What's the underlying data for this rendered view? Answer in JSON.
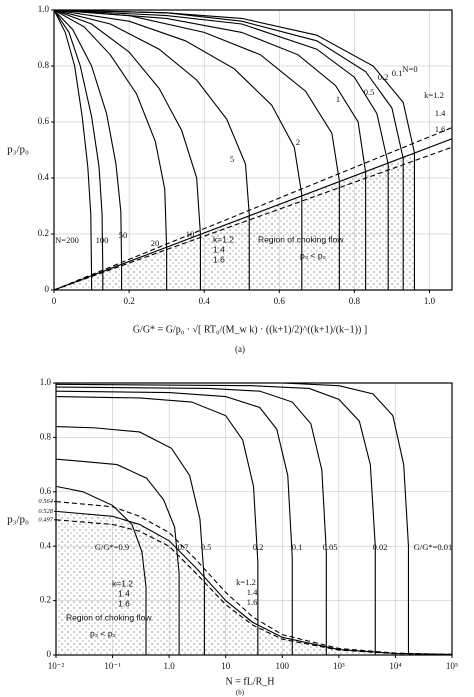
{
  "chart_data": [
    {
      "type": "line",
      "caption": "(a)",
      "ylabel": "p₃/p₀",
      "xlabel": "G/G* = G/p₀ · √[ RT₀/(M_w k) · ((k+1)/2)^((k+1)/(k−1)) ]",
      "xlim": [
        0,
        1.06
      ],
      "ylim": [
        0,
        1.0
      ],
      "xticks": [
        0,
        0.2,
        0.4,
        0.6,
        0.8,
        {
          "value": 1,
          "label": "1.0"
        }
      ],
      "yticks": [
        0,
        0.2,
        0.4,
        0.6,
        0.8,
        {
          "value": 1,
          "label": "1.0"
        }
      ],
      "grid": true,
      "annotations": [
        "k=1.2",
        "1.4",
        "1.6",
        "Region of choking flow",
        "p₃ < p₂"
      ],
      "series": [
        {
          "name": "N=0",
          "color": "#000",
          "x": [
            0,
            0.3,
            0.5,
            0.7,
            0.85,
            0.93,
            0.96,
            0.96
          ],
          "values": [
            1,
            0.99,
            0.97,
            0.91,
            0.8,
            0.67,
            0.49,
            0
          ]
        },
        {
          "name": "0.1",
          "color": "#000",
          "x": [
            0,
            0.3,
            0.5,
            0.7,
            0.83,
            0.9,
            0.93,
            0.93
          ],
          "values": [
            1,
            0.99,
            0.96,
            0.89,
            0.78,
            0.65,
            0.47,
            0
          ]
        },
        {
          "name": "0.2",
          "color": "#000",
          "x": [
            0,
            0.3,
            0.5,
            0.7,
            0.8,
            0.86,
            0.89,
            0.89
          ],
          "values": [
            1,
            0.98,
            0.95,
            0.86,
            0.76,
            0.63,
            0.45,
            0
          ]
        },
        {
          "name": "0.5",
          "color": "#000",
          "x": [
            0,
            0.3,
            0.5,
            0.65,
            0.75,
            0.81,
            0.83,
            0.83
          ],
          "values": [
            1,
            0.97,
            0.92,
            0.84,
            0.73,
            0.6,
            0.42,
            0
          ]
        },
        {
          "name": "1",
          "color": "#000",
          "x": [
            0,
            0.2,
            0.4,
            0.55,
            0.67,
            0.74,
            0.76,
            0.76
          ],
          "values": [
            1,
            0.98,
            0.92,
            0.84,
            0.71,
            0.56,
            0.39,
            0
          ]
        },
        {
          "name": "2",
          "color": "#000",
          "x": [
            0,
            0.2,
            0.35,
            0.48,
            0.58,
            0.64,
            0.66,
            0.66
          ],
          "values": [
            1,
            0.96,
            0.89,
            0.79,
            0.66,
            0.51,
            0.34,
            0
          ]
        },
        {
          "name": "5",
          "color": "#000",
          "x": [
            0,
            0.15,
            0.28,
            0.38,
            0.46,
            0.51,
            0.52,
            0.52
          ],
          "values": [
            1,
            0.95,
            0.86,
            0.75,
            0.61,
            0.45,
            0.27,
            0
          ]
        },
        {
          "name": "10",
          "color": "#000",
          "x": [
            0,
            0.1,
            0.2,
            0.28,
            0.34,
            0.38,
            0.39,
            0.39
          ],
          "values": [
            1,
            0.95,
            0.85,
            0.72,
            0.57,
            0.4,
            0.2,
            0
          ]
        },
        {
          "name": "20",
          "color": "#000",
          "x": [
            0,
            0.08,
            0.15,
            0.22,
            0.27,
            0.295,
            0.3,
            0.3
          ],
          "values": [
            1,
            0.94,
            0.84,
            0.7,
            0.53,
            0.36,
            0.15,
            0
          ]
        },
        {
          "name": "50",
          "color": "#000",
          "x": [
            0,
            0.05,
            0.1,
            0.14,
            0.165,
            0.178,
            0.18,
            0.18
          ],
          "values": [
            1,
            0.93,
            0.8,
            0.63,
            0.45,
            0.28,
            0.09,
            0
          ]
        },
        {
          "name": "100",
          "color": "#000",
          "x": [
            0,
            0.04,
            0.07,
            0.1,
            0.12,
            0.128,
            0.13,
            0.13
          ],
          "values": [
            1,
            0.92,
            0.8,
            0.62,
            0.44,
            0.27,
            0.07,
            0
          ]
        },
        {
          "name": "N=200",
          "color": "#000",
          "x": [
            0,
            0.03,
            0.055,
            0.075,
            0.09,
            0.098,
            0.1,
            0.1
          ],
          "values": [
            1,
            0.92,
            0.8,
            0.62,
            0.44,
            0.27,
            0.05,
            0
          ]
        },
        {
          "name": "k=1.2",
          "color": "#000",
          "dashed": true,
          "x": [
            0,
            1.06
          ],
          "values": [
            0,
            0.58
          ]
        },
        {
          "name": "1.4",
          "color": "#000",
          "dashed": false,
          "region": true,
          "x": [
            0,
            1.06
          ],
          "values": [
            0,
            0.54
          ]
        },
        {
          "name": "1.6",
          "color": "#000",
          "dashed": true,
          "x": [
            0,
            1.06
          ],
          "values": [
            0,
            0.51
          ]
        }
      ]
    },
    {
      "type": "line",
      "caption": "(b)",
      "ylabel": "p₃/p₀",
      "xlabel": "N = fL/R_H",
      "xscale": "log",
      "xlim": [
        0.01,
        100000
      ],
      "ylim": [
        0,
        1.0
      ],
      "xticks": [
        {
          "value": 0.01,
          "label": "10⁻²"
        },
        {
          "value": 0.1,
          "label": "10⁻¹"
        },
        {
          "value": 1,
          "label": "1.0"
        },
        10,
        100,
        {
          "value": 1000,
          "label": "10³"
        },
        {
          "value": 10000,
          "label": "10⁴"
        },
        {
          "value": 100000,
          "label": "10⁵"
        }
      ],
      "yticks": [
        0,
        0.2,
        0.4,
        0.6,
        0.8,
        {
          "value": 1,
          "label": "1.0"
        }
      ],
      "yticks_minor": [
        0.564,
        0.528,
        0.497
      ],
      "grid": true,
      "annotations": [
        "k=1.2",
        "1.4",
        "1.6",
        "Region of choking flow",
        "p₃ < p₂"
      ],
      "series": [
        {
          "name": "G/G*=0.9",
          "color": "#000",
          "x": [
            0.01,
            0.03,
            0.1,
            0.22,
            0.33,
            0.39,
            0.39
          ],
          "values": [
            0.62,
            0.6,
            0.55,
            0.48,
            0.38,
            0.25,
            0
          ]
        },
        {
          "name": "0.7",
          "color": "#000",
          "x": [
            0.01,
            0.02,
            0.12,
            0.4,
            0.8,
            1.25,
            1.5,
            1.5
          ],
          "values": [
            0.72,
            0.715,
            0.7,
            0.65,
            0.57,
            0.47,
            0.3,
            0
          ]
        },
        {
          "name": "0.5",
          "color": "#000",
          "x": [
            0.01,
            0.05,
            0.3,
            1.1,
            2.3,
            3.5,
            4.2,
            4.2
          ],
          "values": [
            0.84,
            0.835,
            0.82,
            0.76,
            0.66,
            0.5,
            0.27,
            0
          ]
        },
        {
          "name": "0.2",
          "color": "#000",
          "x": [
            0.01,
            0.3,
            2.5,
            10,
            20,
            31,
            37,
            37
          ],
          "values": [
            0.95,
            0.945,
            0.93,
            0.88,
            0.79,
            0.62,
            0.34,
            0
          ]
        },
        {
          "name": "0.1",
          "color": "#000",
          "x": [
            0.01,
            1,
            10,
            40,
            80,
            125,
            150,
            150
          ],
          "values": [
            0.97,
            0.965,
            0.95,
            0.91,
            0.83,
            0.66,
            0.36,
            0
          ]
        },
        {
          "name": "0.05",
          "color": "#000",
          "x": [
            0.01,
            5,
            40,
            150,
            320,
            500,
            600,
            600
          ],
          "values": [
            0.985,
            0.98,
            0.97,
            0.93,
            0.85,
            0.68,
            0.38,
            0
          ]
        },
        {
          "name": "0.02",
          "color": "#000",
          "x": [
            0.01,
            30,
            300,
            1000,
            2300,
            3600,
            4400,
            4400
          ],
          "values": [
            0.995,
            0.99,
            0.98,
            0.94,
            0.86,
            0.7,
            0.4,
            0
          ]
        },
        {
          "name": "G/G*=0.01",
          "color": "#000",
          "x": [
            0.01,
            100,
            1000,
            4000,
            9000,
            14000,
            17000,
            17000
          ],
          "values": [
            1,
            1,
            0.99,
            0.96,
            0.88,
            0.7,
            0.4,
            0
          ]
        },
        {
          "name": "k=1.2",
          "color": "#000",
          "dashed": true,
          "x": [
            0.01,
            0.1,
            0.3,
            1,
            3,
            10,
            30,
            100,
            1000,
            10000,
            100000
          ],
          "values": [
            0.564,
            0.545,
            0.51,
            0.45,
            0.35,
            0.23,
            0.14,
            0.075,
            0.024,
            0.007,
            0.002
          ]
        },
        {
          "name": "1.4",
          "color": "#000",
          "dashed": false,
          "region": true,
          "x": [
            0.01,
            0.1,
            0.3,
            1,
            3,
            10,
            30,
            100,
            1000,
            10000,
            100000
          ],
          "values": [
            0.528,
            0.51,
            0.48,
            0.42,
            0.32,
            0.2,
            0.12,
            0.065,
            0.02,
            0.006,
            0.002
          ]
        },
        {
          "name": "1.6",
          "color": "#000",
          "dashed": true,
          "x": [
            0.01,
            0.1,
            0.3,
            1,
            3,
            10,
            30,
            100,
            1000,
            10000,
            100000
          ],
          "values": [
            0.497,
            0.48,
            0.455,
            0.4,
            0.3,
            0.185,
            0.11,
            0.058,
            0.018,
            0.005,
            0.002
          ]
        }
      ]
    }
  ]
}
